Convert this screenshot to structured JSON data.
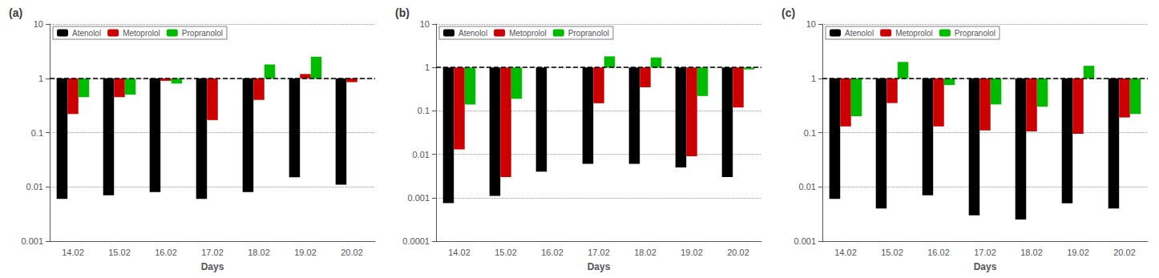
{
  "chart_data": [
    {
      "type": "bar",
      "title": "(a)",
      "xlabel": "Days",
      "categories": [
        "14.02",
        "15.02",
        "16.02",
        "17.02",
        "18.02",
        "19.02",
        "20.02"
      ],
      "series": [
        {
          "name": "Atenolol",
          "color": "#000000",
          "values": [
            0.006,
            0.007,
            0.008,
            0.006,
            0.008,
            0.015,
            0.011
          ]
        },
        {
          "name": "Metoprolol",
          "color": "#cc0000",
          "values": [
            0.22,
            0.45,
            0.9,
            0.17,
            0.4,
            1.2,
            0.85
          ]
        },
        {
          "name": "Propranolol",
          "color": "#00bb00",
          "values": [
            0.45,
            0.5,
            0.8,
            null,
            1.8,
            2.5,
            1.0
          ]
        }
      ],
      "ylim": [
        0.001,
        10
      ],
      "yticks": [
        0.001,
        0.01,
        0.1,
        1,
        10
      ],
      "log": "y",
      "grid": true,
      "legend": "upper left",
      "hline": 1.0
    },
    {
      "type": "bar",
      "title": "(b)",
      "xlabel": "Days",
      "categories": [
        "14.02",
        "15.02",
        "16.02",
        "17.02",
        "18.02",
        "19.02",
        "20.02"
      ],
      "series": [
        {
          "name": "Atenolol",
          "color": "#000000",
          "values": [
            0.00075,
            0.0011,
            0.004,
            0.006,
            0.006,
            0.005,
            0.003
          ]
        },
        {
          "name": "Metoprolol",
          "color": "#cc0000",
          "values": [
            0.013,
            0.003,
            null,
            0.15,
            0.35,
            0.009,
            0.12
          ]
        },
        {
          "name": "Propranolol",
          "color": "#00bb00",
          "values": [
            0.14,
            0.19,
            null,
            1.8,
            1.7,
            0.22,
            0.9
          ]
        }
      ],
      "ylim": [
        0.0001,
        10
      ],
      "yticks": [
        0.0001,
        0.001,
        0.01,
        0.1,
        1,
        10
      ],
      "log": "y",
      "grid": true,
      "legend": "upper left",
      "hline": 1.0
    },
    {
      "type": "bar",
      "title": "(c)",
      "xlabel": "Days",
      "categories": [
        "14.02",
        "15.02",
        "16.02",
        "17.02",
        "18.02",
        "19.02",
        "20.02"
      ],
      "series": [
        {
          "name": "Atenolol",
          "color": "#000000",
          "values": [
            0.006,
            0.004,
            0.007,
            0.003,
            0.0025,
            0.005,
            0.004
          ]
        },
        {
          "name": "Metoprolol",
          "color": "#cc0000",
          "values": [
            0.13,
            0.35,
            0.13,
            0.11,
            0.105,
            0.095,
            0.19
          ]
        },
        {
          "name": "Propranolol",
          "color": "#00bb00",
          "values": [
            0.2,
            2.0,
            0.75,
            0.33,
            0.3,
            1.7,
            0.22
          ]
        }
      ],
      "ylim": [
        0.001,
        10
      ],
      "yticks": [
        0.001,
        0.01,
        0.1,
        1,
        10
      ],
      "log": "y",
      "grid": true,
      "legend": "upper left",
      "hline": 1.0
    }
  ]
}
